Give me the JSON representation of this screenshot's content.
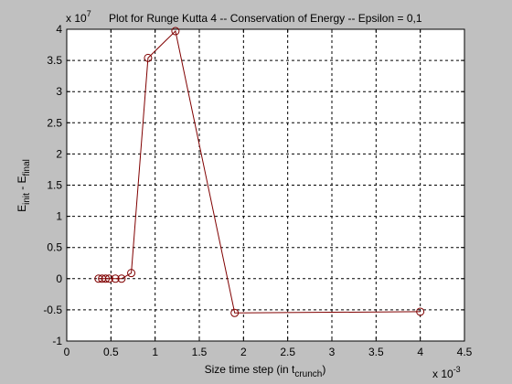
{
  "figure": {
    "background": "#c0c0c0",
    "axes_background": "#ffffff",
    "line_color": "#800000"
  },
  "chart_data": {
    "type": "line",
    "title": "Plot for Runge Kutta 4 -- Conservation of Energy -- Epsilon = 0,1",
    "xlabel": {
      "main": "Size time step (in t",
      "sub": "crunch",
      "close": ")"
    },
    "ylabel": {
      "p1": "E",
      "s1": "init",
      "p2": " - E",
      "s2": "final"
    },
    "x_multiplier": {
      "base": "x 10",
      "exp": "-3"
    },
    "y_multiplier": {
      "base": "x 10",
      "exp": "7"
    },
    "xlim": [
      0,
      4.5
    ],
    "ylim": [
      -1,
      4
    ],
    "xticks": [
      0,
      0.5,
      1,
      1.5,
      2,
      2.5,
      3,
      3.5,
      4,
      4.5
    ],
    "xtick_labels": [
      "0",
      "0.5",
      "1",
      "1.5",
      "2",
      "2.5",
      "3",
      "3.5",
      "4",
      "4.5"
    ],
    "yticks": [
      -1,
      -0.5,
      0,
      0.5,
      1,
      1.5,
      2,
      2.5,
      3,
      3.5,
      4
    ],
    "ytick_labels": [
      "-1",
      "-0.5",
      "0",
      "0.5",
      "1",
      "1.5",
      "2",
      "2.5",
      "3",
      "3.5",
      "4"
    ],
    "grid": true,
    "marker": "circle",
    "x": [
      0.36,
      0.4,
      0.44,
      0.48,
      0.55,
      0.62,
      0.73,
      0.92,
      1.23,
      1.9,
      4.0
    ],
    "y": [
      0.0,
      0.0,
      0.0,
      0.0,
      0.0,
      0.0,
      0.09,
      3.54,
      3.97,
      -0.55,
      -0.53
    ]
  }
}
